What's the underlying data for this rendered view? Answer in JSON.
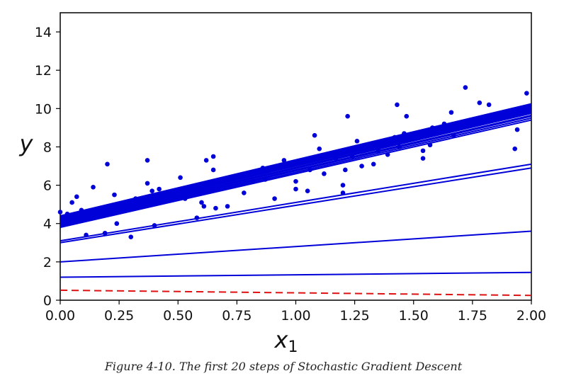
{
  "caption": "Figure 4-10. The first 20 steps of Stochastic Gradient Descent",
  "colors": {
    "line": "#0000d8",
    "point": "#0000d8",
    "initial_line": "#e01010"
  },
  "chart_data": {
    "type": "scatter",
    "title": "",
    "xlabel": "x",
    "xlabel_subscript": "1",
    "ylabel": "y",
    "xlim": [
      0,
      2
    ],
    "ylim": [
      0,
      15
    ],
    "xticks": [
      "0.00",
      "0.25",
      "0.50",
      "0.75",
      "1.00",
      "1.25",
      "1.50",
      "1.75",
      "2.00"
    ],
    "yticks": [
      "0",
      "2",
      "4",
      "6",
      "8",
      "10",
      "12",
      "14"
    ],
    "grid": false,
    "legend": "none",
    "points": [
      [
        0.0,
        4.6
      ],
      [
        0.05,
        5.1
      ],
      [
        0.07,
        5.4
      ],
      [
        0.09,
        4.7
      ],
      [
        0.11,
        3.4
      ],
      [
        0.14,
        5.9
      ],
      [
        0.16,
        4.7
      ],
      [
        0.19,
        3.5
      ],
      [
        0.2,
        7.1
      ],
      [
        0.23,
        5.5
      ],
      [
        0.24,
        4.0
      ],
      [
        0.27,
        4.9
      ],
      [
        0.3,
        3.3
      ],
      [
        0.32,
        5.3
      ],
      [
        0.36,
        5.0
      ],
      [
        0.37,
        6.1
      ],
      [
        0.37,
        7.3
      ],
      [
        0.39,
        5.7
      ],
      [
        0.4,
        3.9
      ],
      [
        0.42,
        5.8
      ],
      [
        0.51,
        6.4
      ],
      [
        0.53,
        5.3
      ],
      [
        0.58,
        4.3
      ],
      [
        0.6,
        5.1
      ],
      [
        0.61,
        4.9
      ],
      [
        0.62,
        7.3
      ],
      [
        0.65,
        7.5
      ],
      [
        0.65,
        6.8
      ],
      [
        0.66,
        4.8
      ],
      [
        0.71,
        4.9
      ],
      [
        0.72,
        6.4
      ],
      [
        0.78,
        5.6
      ],
      [
        0.86,
        6.9
      ],
      [
        0.87,
        6.3
      ],
      [
        0.91,
        5.3
      ],
      [
        0.95,
        7.3
      ],
      [
        1.0,
        6.2
      ],
      [
        1.0,
        5.8
      ],
      [
        1.05,
        5.7
      ],
      [
        1.06,
        6.8
      ],
      [
        1.08,
        8.6
      ],
      [
        1.1,
        7.9
      ],
      [
        1.12,
        6.6
      ],
      [
        1.2,
        6.0
      ],
      [
        1.2,
        5.6
      ],
      [
        1.21,
        6.8
      ],
      [
        1.22,
        9.6
      ],
      [
        1.24,
        7.5
      ],
      [
        1.26,
        8.3
      ],
      [
        1.28,
        7.0
      ],
      [
        1.33,
        7.1
      ],
      [
        1.39,
        7.6
      ],
      [
        1.42,
        8.5
      ],
      [
        1.43,
        10.2
      ],
      [
        1.46,
        8.7
      ],
      [
        1.47,
        9.6
      ],
      [
        1.54,
        7.8
      ],
      [
        1.54,
        7.4
      ],
      [
        1.58,
        9.0
      ],
      [
        1.63,
        9.2
      ],
      [
        1.66,
        9.8
      ],
      [
        1.67,
        8.6
      ],
      [
        1.72,
        11.1
      ],
      [
        1.78,
        10.3
      ],
      [
        1.82,
        10.2
      ],
      [
        1.93,
        7.9
      ],
      [
        1.94,
        8.9
      ],
      [
        1.98,
        10.8
      ],
      [
        0.02,
        4.3
      ],
      [
        0.03,
        4.5
      ],
      [
        1.57,
        8.1
      ],
      [
        1.44,
        8.0
      ],
      [
        0.26,
        4.7
      ],
      [
        0.45,
        5.2
      ],
      [
        0.56,
        5.8
      ],
      [
        0.82,
        6.2
      ],
      [
        1.17,
        7.4
      ],
      [
        1.35,
        7.8
      ],
      [
        1.62,
        8.8
      ],
      [
        1.7,
        9.1
      ],
      [
        1.9,
        9.6
      ]
    ],
    "series": [
      {
        "points": [
          [
            0,
            0.52
          ],
          [
            2,
            0.25
          ]
        ],
        "style": "dashed",
        "color": "#e01010"
      },
      {
        "points": [
          [
            0,
            1.2
          ],
          [
            2,
            1.45
          ]
        ]
      },
      {
        "points": [
          [
            0,
            2.0
          ],
          [
            2,
            3.6
          ]
        ]
      },
      {
        "points": [
          [
            0,
            3.0
          ],
          [
            2,
            6.9
          ]
        ]
      },
      {
        "points": [
          [
            0,
            3.1
          ],
          [
            2,
            7.1
          ]
        ]
      },
      {
        "points": [
          [
            0,
            3.8
          ],
          [
            2,
            9.4
          ]
        ]
      },
      {
        "points": [
          [
            0,
            3.85
          ],
          [
            2,
            9.5
          ]
        ]
      },
      {
        "points": [
          [
            0,
            3.9
          ],
          [
            2,
            9.6
          ]
        ]
      },
      {
        "points": [
          [
            0,
            3.95
          ],
          [
            2,
            9.65
          ]
        ]
      },
      {
        "points": [
          [
            0,
            4.0
          ],
          [
            2,
            9.75
          ]
        ]
      },
      {
        "points": [
          [
            0,
            4.05
          ],
          [
            2,
            9.8
          ]
        ]
      },
      {
        "points": [
          [
            0,
            4.1
          ],
          [
            2,
            9.9
          ]
        ]
      },
      {
        "points": [
          [
            0,
            4.12
          ],
          [
            2,
            9.95
          ]
        ]
      },
      {
        "points": [
          [
            0,
            4.15
          ],
          [
            2,
            10.0
          ]
        ]
      },
      {
        "points": [
          [
            0,
            4.2
          ],
          [
            2,
            10.05
          ]
        ]
      },
      {
        "points": [
          [
            0,
            4.25
          ],
          [
            2,
            10.1
          ]
        ]
      },
      {
        "points": [
          [
            0,
            4.3
          ],
          [
            2,
            10.15
          ]
        ]
      },
      {
        "points": [
          [
            0,
            4.35
          ],
          [
            2,
            10.2
          ]
        ]
      },
      {
        "points": [
          [
            0,
            4.4
          ],
          [
            2,
            10.25
          ]
        ]
      },
      {
        "points": [
          [
            0,
            4.0
          ],
          [
            2,
            9.85
          ]
        ]
      },
      {
        "points": [
          [
            0,
            4.2
          ],
          [
            2,
            10.0
          ]
        ]
      }
    ]
  }
}
